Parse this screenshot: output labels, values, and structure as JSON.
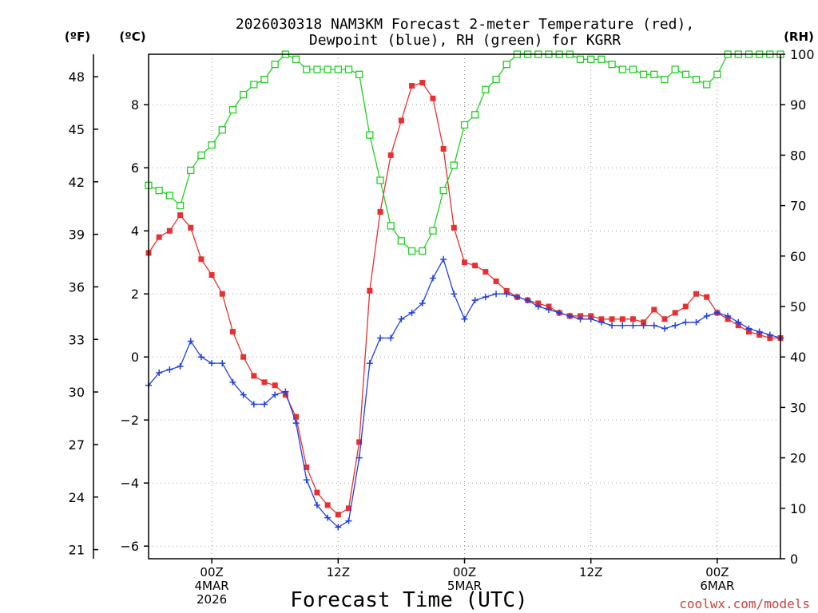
{
  "title_line1": "2026030318 NAM3KM Forecast 2-meter Temperature (red),",
  "title_line2": "Dewpoint (blue), RH (green) for KGRR",
  "unit_f": "(ºF)",
  "unit_c": "(ºC)",
  "unit_rh": "(RH)",
  "x_axis_label": "Forecast Time (UTC)",
  "credit": "coolwx.com/models",
  "credit_color": "#d04040",
  "colors": {
    "temperature": "#e83030",
    "dewpoint": "#2040e0",
    "rh": "#20d020"
  },
  "chart_data": {
    "type": "line",
    "x_hours_from_init": [
      0,
      1,
      2,
      3,
      4,
      5,
      6,
      7,
      8,
      9,
      10,
      11,
      12,
      13,
      14,
      15,
      16,
      17,
      18,
      19,
      20,
      21,
      22,
      23,
      24,
      25,
      26,
      27,
      28,
      29,
      30,
      31,
      32,
      33,
      34,
      35,
      36,
      37,
      38,
      39,
      40,
      41,
      42,
      43,
      44,
      45,
      46,
      47,
      48,
      49,
      50,
      51,
      52,
      53,
      54,
      55,
      56,
      57,
      58,
      59,
      60
    ],
    "x_range": [
      0,
      60
    ],
    "x_ticks": [
      {
        "hour": 6,
        "lines": [
          "00Z",
          "4MAR",
          "2026"
        ]
      },
      {
        "hour": 18,
        "lines": [
          "12Z"
        ]
      },
      {
        "hour": 30,
        "lines": [
          "00Z",
          "5MAR"
        ]
      },
      {
        "hour": 42,
        "lines": [
          "12Z"
        ]
      },
      {
        "hour": 54,
        "lines": [
          "00Z",
          "6MAR"
        ]
      }
    ],
    "y_left_celsius": {
      "range": [
        -6.4,
        9.6
      ],
      "ticks": [
        -6,
        -4,
        -2,
        0,
        2,
        4,
        6,
        8
      ]
    },
    "y_left_fahrenheit": {
      "range": [
        20.48,
        49.28
      ],
      "ticks": [
        21,
        24,
        27,
        30,
        33,
        36,
        39,
        42,
        45,
        48
      ]
    },
    "y_right_rh": {
      "range": [
        0,
        100
      ],
      "ticks": [
        0,
        10,
        20,
        30,
        40,
        50,
        60,
        70,
        80,
        90,
        100
      ]
    },
    "grid": true,
    "series": [
      {
        "name": "Temperature (red)",
        "axis": "celsius",
        "marker": "filled-square",
        "values": [
          3.3,
          3.8,
          4.0,
          4.5,
          4.1,
          3.1,
          2.6,
          2.0,
          0.8,
          0.0,
          -0.6,
          -0.8,
          -0.9,
          -1.2,
          -1.9,
          -3.5,
          -4.3,
          -4.7,
          -5.0,
          -4.8,
          -2.7,
          2.1,
          4.6,
          6.4,
          7.5,
          8.6,
          8.7,
          8.2,
          6.6,
          4.1,
          3.0,
          2.9,
          2.7,
          2.4,
          2.1,
          1.9,
          1.8,
          1.7,
          1.6,
          1.4,
          1.3,
          1.3,
          1.3,
          1.2,
          1.2,
          1.2,
          1.2,
          1.1,
          1.5,
          1.2,
          1.4,
          1.6,
          2.0,
          1.9,
          1.4,
          1.2,
          1.0,
          0.8,
          0.7,
          0.6,
          0.6
        ]
      },
      {
        "name": "Dewpoint (blue)",
        "axis": "celsius",
        "marker": "plus",
        "values": [
          -0.9,
          -0.5,
          -0.4,
          -0.3,
          0.5,
          0.0,
          -0.2,
          -0.2,
          -0.8,
          -1.2,
          -1.5,
          -1.5,
          -1.2,
          -1.1,
          -2.1,
          -3.9,
          -4.7,
          -5.1,
          -5.4,
          -5.2,
          -3.2,
          -0.2,
          0.6,
          0.6,
          1.2,
          1.4,
          1.7,
          2.5,
          3.1,
          2.0,
          1.2,
          1.8,
          1.9,
          2.0,
          2.0,
          1.9,
          1.8,
          1.6,
          1.5,
          1.4,
          1.3,
          1.2,
          1.2,
          1.1,
          1.0,
          1.0,
          1.0,
          1.0,
          1.0,
          0.9,
          1.0,
          1.1,
          1.1,
          1.3,
          1.4,
          1.3,
          1.1,
          0.9,
          0.8,
          0.7,
          0.6
        ]
      },
      {
        "name": "RH (green)",
        "axis": "rh",
        "marker": "open-square",
        "values": [
          74,
          73,
          72,
          70,
          77,
          80,
          82,
          85,
          89,
          92,
          94,
          95,
          98,
          100,
          99,
          97,
          97,
          97,
          97,
          97,
          96,
          84,
          75,
          66,
          63,
          61,
          61,
          65,
          73,
          78,
          86,
          88,
          93,
          95,
          98,
          100,
          100,
          100,
          100,
          100,
          100,
          99,
          99,
          99,
          98,
          97,
          97,
          96,
          96,
          95,
          97,
          96,
          95,
          94,
          96,
          100,
          100,
          100,
          100,
          100,
          100
        ]
      }
    ]
  }
}
